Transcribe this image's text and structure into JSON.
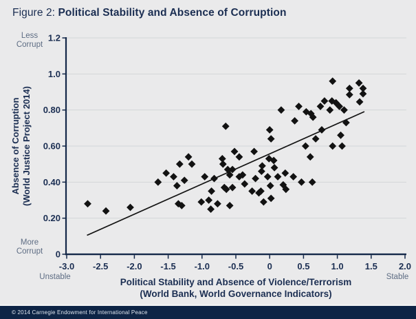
{
  "title": {
    "prefix": "Figure 2: ",
    "text": "Political Stability and Absence of Corruption"
  },
  "footer": {
    "text": "© 2014 Carnegie Endowment for International Peace"
  },
  "colors": {
    "background": "#eaeaeb",
    "navy_text": "#1b2e52",
    "axis": "#132748",
    "grid": "#d3d5d8",
    "marker": "#121212",
    "trend": "#141414",
    "muted_label": "#5d6c83",
    "footer_bg": "#0d2445",
    "footer_text": "#dfe6ef"
  },
  "chart_data": {
    "type": "scatter",
    "title": "Political Stability and Absence of Corruption",
    "xlabel": [
      "Political Stability and Absence of Violence/Terrorism",
      "(World Bank, World Governance Indicators)"
    ],
    "ylabel": [
      "Absence of Corruption",
      "(World Justice Project 2014)"
    ],
    "xlim": [
      -3.0,
      2.0
    ],
    "ylim": [
      0,
      1.2
    ],
    "grid": "horizontal-only",
    "legend": "none",
    "x_ticks": [
      {
        "value": -3.0,
        "label": "-3.0"
      },
      {
        "value": -2.5,
        "label": "-2.5"
      },
      {
        "value": -2.0,
        "label": "-2.0"
      },
      {
        "value": -1.5,
        "label": "-1.5"
      },
      {
        "value": -1.0,
        "label": "-1.0"
      },
      {
        "value": -0.5,
        "label": "-0.5"
      },
      {
        "value": 0.0,
        "label": "0"
      },
      {
        "value": 0.5,
        "label": "0.5"
      },
      {
        "value": 1.0,
        "label": "1.0"
      },
      {
        "value": 1.5,
        "label": "1.5"
      },
      {
        "value": 2.0,
        "label": "2.0"
      }
    ],
    "y_ticks": [
      {
        "value": 1.2,
        "label": "1.2"
      },
      {
        "value": 1.0,
        "label": "1.0"
      },
      {
        "value": 0.8,
        "label": "0.80"
      },
      {
        "value": 0.6,
        "label": "0.60"
      },
      {
        "value": 0.4,
        "label": "0.40"
      },
      {
        "value": 0.2,
        "label": "0.20"
      },
      {
        "value": 0.0,
        "label": "0"
      }
    ],
    "anchor_labels": {
      "y_high": [
        "Less",
        "Corrupt"
      ],
      "y_low": [
        "More",
        "Corrupt"
      ],
      "x_low": "Unstable",
      "x_high": "Stable"
    },
    "trend_line": {
      "x1": -2.7,
      "y1": 0.105,
      "x2": 1.4,
      "y2": 0.791
    },
    "points": [
      [
        -2.69,
        0.28
      ],
      [
        -2.42,
        0.24
      ],
      [
        -2.06,
        0.26
      ],
      [
        -1.65,
        0.4
      ],
      [
        -1.53,
        0.45
      ],
      [
        -1.42,
        0.43
      ],
      [
        -1.37,
        0.38
      ],
      [
        -1.35,
        0.28
      ],
      [
        -1.33,
        0.5
      ],
      [
        -1.3,
        0.27
      ],
      [
        -1.26,
        0.41
      ],
      [
        -1.2,
        0.54
      ],
      [
        -1.15,
        0.5
      ],
      [
        -1.01,
        0.29
      ],
      [
        -0.96,
        0.43
      ],
      [
        -0.9,
        0.3
      ],
      [
        -0.87,
        0.25
      ],
      [
        -0.86,
        0.35
      ],
      [
        -0.82,
        0.42
      ],
      [
        -0.77,
        0.28
      ],
      [
        -0.7,
        0.53
      ],
      [
        -0.69,
        0.5
      ],
      [
        -0.67,
        0.37
      ],
      [
        -0.65,
        0.71
      ],
      [
        -0.64,
        0.36
      ],
      [
        -0.62,
        0.47
      ],
      [
        -0.59,
        0.44
      ],
      [
        -0.59,
        0.27
      ],
      [
        -0.55,
        0.47
      ],
      [
        -0.55,
        0.37
      ],
      [
        -0.52,
        0.57
      ],
      [
        -0.45,
        0.54
      ],
      [
        -0.45,
        0.43
      ],
      [
        -0.4,
        0.44
      ],
      [
        -0.37,
        0.39
      ],
      [
        -0.26,
        0.35
      ],
      [
        -0.23,
        0.57
      ],
      [
        -0.21,
        0.42
      ],
      [
        -0.16,
        0.34
      ],
      [
        -0.13,
        0.35
      ],
      [
        -0.12,
        0.46
      ],
      [
        -0.11,
        0.49
      ],
      [
        -0.09,
        0.29
      ],
      [
        -0.03,
        0.43
      ],
      [
        -0.01,
        0.53
      ],
      [
        0.0,
        0.69
      ],
      [
        0.01,
        0.38
      ],
      [
        0.02,
        0.64
      ],
      [
        0.02,
        0.31
      ],
      [
        0.06,
        0.52
      ],
      [
        0.07,
        0.48
      ],
      [
        0.12,
        0.43
      ],
      [
        0.17,
        0.8
      ],
      [
        0.2,
        0.385
      ],
      [
        0.23,
        0.45
      ],
      [
        0.24,
        0.36
      ],
      [
        0.35,
        0.43
      ],
      [
        0.37,
        0.74
      ],
      [
        0.43,
        0.82
      ],
      [
        0.47,
        0.4
      ],
      [
        0.53,
        0.6
      ],
      [
        0.54,
        0.79
      ],
      [
        0.6,
        0.54
      ],
      [
        0.61,
        0.78
      ],
      [
        0.63,
        0.4
      ],
      [
        0.64,
        0.76
      ],
      [
        0.68,
        0.64
      ],
      [
        0.75,
        0.82
      ],
      [
        0.77,
        0.69
      ],
      [
        0.81,
        0.85
      ],
      [
        0.89,
        0.8
      ],
      [
        0.92,
        0.85
      ],
      [
        0.93,
        0.96
      ],
      [
        0.93,
        0.6
      ],
      [
        0.98,
        0.84
      ],
      [
        1.03,
        0.82
      ],
      [
        1.05,
        0.66
      ],
      [
        1.07,
        0.6
      ],
      [
        1.1,
        0.8
      ],
      [
        1.13,
        0.73
      ],
      [
        1.18,
        0.92
      ],
      [
        1.18,
        0.885
      ],
      [
        1.32,
        0.95
      ],
      [
        1.33,
        0.845
      ],
      [
        1.38,
        0.92
      ],
      [
        1.38,
        0.89
      ]
    ]
  }
}
